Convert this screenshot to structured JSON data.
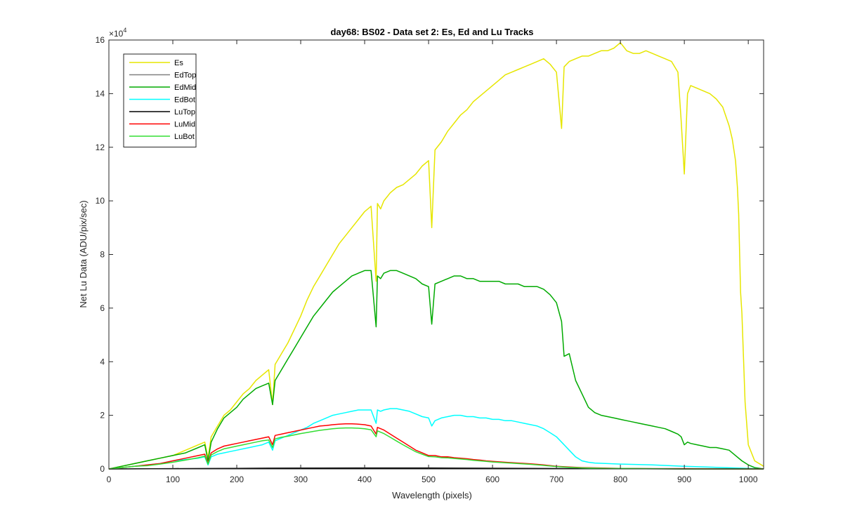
{
  "chart_data": {
    "type": "line",
    "title": "day68: BS02 - Data set 2: Es, Ed and Lu Tracks",
    "xlabel": "Wavelength (pixels)",
    "ylabel": "Net Lu Data (ADU/pix/sec)",
    "exponent_label": "×10",
    "exponent_power": "4",
    "xlim": [
      0,
      1024
    ],
    "ylim": [
      0,
      16
    ],
    "y_scale_factor": 10000,
    "xticks": [
      0,
      100,
      200,
      300,
      400,
      500,
      600,
      700,
      800,
      900,
      1000
    ],
    "xtick_labels": [
      "0",
      "100",
      "200",
      "300",
      "400",
      "500",
      "600",
      "700",
      "800",
      "900",
      "1000"
    ],
    "yticks": [
      0,
      2,
      4,
      6,
      8,
      10,
      12,
      14,
      16
    ],
    "ytick_labels": [
      "0",
      "2",
      "4",
      "6",
      "8",
      "10",
      "12",
      "14",
      "16"
    ],
    "grid": false,
    "legend_position": "top-left",
    "series": [
      {
        "name": "Es",
        "color": "#e6e600",
        "x": [
          0,
          20,
          40,
          60,
          80,
          100,
          120,
          140,
          150,
          155,
          160,
          170,
          180,
          190,
          200,
          210,
          220,
          230,
          240,
          250,
          256,
          260,
          270,
          280,
          290,
          300,
          310,
          320,
          330,
          340,
          350,
          360,
          370,
          380,
          390,
          400,
          410,
          418,
          420,
          425,
          430,
          440,
          450,
          460,
          470,
          480,
          490,
          500,
          505,
          510,
          520,
          530,
          540,
          550,
          560,
          570,
          580,
          590,
          600,
          610,
          620,
          630,
          640,
          650,
          660,
          670,
          680,
          690,
          700,
          708,
          712,
          720,
          730,
          740,
          750,
          760,
          770,
          780,
          790,
          800,
          810,
          820,
          830,
          840,
          850,
          860,
          870,
          880,
          890,
          895,
          900,
          905,
          910,
          920,
          930,
          940,
          950,
          960,
          970,
          975,
          980,
          983,
          985,
          988,
          990,
          995,
          1000,
          1010,
          1024
        ],
        "y": [
          0.0,
          0.1,
          0.2,
          0.3,
          0.4,
          0.5,
          0.7,
          0.9,
          1.0,
          0.4,
          1.2,
          1.6,
          2.0,
          2.2,
          2.5,
          2.8,
          3.0,
          3.3,
          3.5,
          3.7,
          2.4,
          3.9,
          4.3,
          4.7,
          5.2,
          5.7,
          6.3,
          6.8,
          7.2,
          7.6,
          8.0,
          8.4,
          8.7,
          9.0,
          9.3,
          9.6,
          9.8,
          7.0,
          9.9,
          9.7,
          10.0,
          10.3,
          10.5,
          10.6,
          10.8,
          11.0,
          11.3,
          11.5,
          9.0,
          11.9,
          12.2,
          12.6,
          12.9,
          13.2,
          13.4,
          13.7,
          13.9,
          14.1,
          14.3,
          14.5,
          14.7,
          14.8,
          14.9,
          15.0,
          15.1,
          15.2,
          15.3,
          15.1,
          14.8,
          12.7,
          15.0,
          15.2,
          15.3,
          15.4,
          15.4,
          15.5,
          15.6,
          15.6,
          15.7,
          15.9,
          15.6,
          15.5,
          15.5,
          15.6,
          15.5,
          15.4,
          15.3,
          15.2,
          14.8,
          13.0,
          11.0,
          14.0,
          14.3,
          14.2,
          14.1,
          14.0,
          13.8,
          13.5,
          12.8,
          12.3,
          11.5,
          10.5,
          9.5,
          6.6,
          5.8,
          2.5,
          0.9,
          0.3,
          0.1
        ]
      },
      {
        "name": "EdTop",
        "color": "#808080",
        "x": [
          0,
          100,
          200,
          300,
          400,
          500,
          600,
          700,
          800,
          900,
          1024
        ],
        "y": [
          0.0,
          0.01,
          0.02,
          0.03,
          0.04,
          0.04,
          0.03,
          0.02,
          0.01,
          0.01,
          0.0
        ]
      },
      {
        "name": "EdMid",
        "color": "#00aa00",
        "x": [
          0,
          20,
          40,
          60,
          80,
          100,
          120,
          140,
          150,
          155,
          160,
          170,
          180,
          190,
          200,
          210,
          220,
          230,
          240,
          250,
          256,
          260,
          270,
          280,
          290,
          300,
          310,
          320,
          330,
          340,
          350,
          360,
          370,
          380,
          390,
          400,
          410,
          418,
          420,
          425,
          430,
          440,
          450,
          460,
          470,
          480,
          490,
          500,
          505,
          510,
          520,
          530,
          540,
          550,
          560,
          570,
          580,
          590,
          600,
          610,
          620,
          630,
          640,
          650,
          660,
          670,
          680,
          690,
          700,
          708,
          712,
          720,
          730,
          740,
          750,
          760,
          770,
          780,
          790,
          800,
          810,
          820,
          830,
          840,
          850,
          860,
          870,
          880,
          890,
          895,
          900,
          905,
          910,
          920,
          930,
          940,
          950,
          960,
          970,
          980,
          990,
          1000,
          1010,
          1024
        ],
        "y": [
          0.0,
          0.1,
          0.2,
          0.3,
          0.4,
          0.5,
          0.6,
          0.8,
          0.9,
          0.3,
          1.0,
          1.5,
          1.9,
          2.1,
          2.3,
          2.6,
          2.8,
          3.0,
          3.1,
          3.2,
          2.4,
          3.3,
          3.7,
          4.1,
          4.5,
          4.9,
          5.3,
          5.7,
          6.0,
          6.3,
          6.6,
          6.8,
          7.0,
          7.2,
          7.3,
          7.4,
          7.4,
          5.3,
          7.2,
          7.1,
          7.3,
          7.4,
          7.4,
          7.3,
          7.2,
          7.1,
          6.9,
          6.8,
          5.4,
          6.9,
          7.0,
          7.1,
          7.2,
          7.2,
          7.1,
          7.1,
          7.0,
          7.0,
          7.0,
          7.0,
          6.9,
          6.9,
          6.9,
          6.8,
          6.8,
          6.8,
          6.7,
          6.5,
          6.2,
          5.5,
          4.2,
          4.3,
          3.3,
          2.8,
          2.3,
          2.1,
          2.0,
          1.95,
          1.9,
          1.85,
          1.8,
          1.75,
          1.7,
          1.65,
          1.6,
          1.55,
          1.5,
          1.4,
          1.3,
          1.2,
          0.9,
          1.0,
          0.95,
          0.9,
          0.85,
          0.8,
          0.8,
          0.75,
          0.7,
          0.5,
          0.3,
          0.15,
          0.05,
          0.0
        ]
      },
      {
        "name": "EdBot",
        "color": "#00ffff",
        "x": [
          0,
          20,
          40,
          60,
          80,
          100,
          120,
          140,
          150,
          155,
          160,
          170,
          180,
          190,
          200,
          210,
          220,
          230,
          240,
          250,
          256,
          260,
          270,
          280,
          290,
          300,
          310,
          320,
          330,
          340,
          350,
          360,
          370,
          380,
          390,
          400,
          410,
          418,
          420,
          425,
          430,
          440,
          450,
          460,
          470,
          480,
          490,
          500,
          505,
          510,
          520,
          530,
          540,
          550,
          560,
          570,
          580,
          590,
          600,
          610,
          620,
          630,
          640,
          650,
          660,
          670,
          680,
          690,
          700,
          710,
          720,
          730,
          740,
          750,
          760,
          780,
          800,
          850,
          900,
          950,
          1000,
          1024
        ],
        "y": [
          0.0,
          0.05,
          0.1,
          0.15,
          0.2,
          0.3,
          0.35,
          0.4,
          0.45,
          0.15,
          0.45,
          0.55,
          0.6,
          0.65,
          0.7,
          0.75,
          0.8,
          0.85,
          0.9,
          1.0,
          0.7,
          1.05,
          1.15,
          1.25,
          1.35,
          1.45,
          1.55,
          1.7,
          1.8,
          1.9,
          2.0,
          2.05,
          2.1,
          2.15,
          2.2,
          2.2,
          2.2,
          1.7,
          2.2,
          2.15,
          2.2,
          2.25,
          2.25,
          2.2,
          2.15,
          2.05,
          1.95,
          1.9,
          1.6,
          1.8,
          1.9,
          1.95,
          2.0,
          2.0,
          1.95,
          1.95,
          1.9,
          1.9,
          1.85,
          1.85,
          1.8,
          1.8,
          1.75,
          1.7,
          1.65,
          1.6,
          1.5,
          1.35,
          1.2,
          0.95,
          0.7,
          0.45,
          0.3,
          0.25,
          0.22,
          0.2,
          0.18,
          0.15,
          0.1,
          0.06,
          0.02,
          0.0
        ]
      },
      {
        "name": "LuTop",
        "color": "#000000",
        "x": [
          0,
          100,
          200,
          300,
          400,
          500,
          600,
          700,
          800,
          900,
          1024
        ],
        "y": [
          0.0,
          0.01,
          0.02,
          0.03,
          0.03,
          0.03,
          0.02,
          0.01,
          0.01,
          0.0,
          0.0
        ]
      },
      {
        "name": "LuMid",
        "color": "#ff0000",
        "x": [
          0,
          20,
          40,
          60,
          80,
          100,
          120,
          140,
          150,
          155,
          160,
          170,
          180,
          190,
          200,
          210,
          220,
          230,
          240,
          250,
          256,
          260,
          270,
          280,
          290,
          300,
          310,
          320,
          330,
          340,
          350,
          360,
          370,
          380,
          390,
          400,
          410,
          418,
          420,
          425,
          430,
          440,
          450,
          460,
          470,
          480,
          490,
          500,
          510,
          520,
          530,
          540,
          550,
          560,
          570,
          580,
          590,
          600,
          620,
          640,
          660,
          680,
          700,
          720,
          740,
          760,
          780,
          800,
          850,
          900,
          950,
          1000,
          1024
        ],
        "y": [
          0.0,
          0.05,
          0.1,
          0.15,
          0.2,
          0.3,
          0.4,
          0.5,
          0.55,
          0.2,
          0.6,
          0.75,
          0.85,
          0.9,
          0.95,
          1.0,
          1.05,
          1.1,
          1.15,
          1.2,
          0.9,
          1.25,
          1.3,
          1.35,
          1.4,
          1.45,
          1.5,
          1.55,
          1.6,
          1.62,
          1.65,
          1.67,
          1.68,
          1.68,
          1.67,
          1.65,
          1.6,
          1.3,
          1.55,
          1.5,
          1.45,
          1.3,
          1.15,
          1.0,
          0.85,
          0.7,
          0.6,
          0.5,
          0.5,
          0.45,
          0.45,
          0.42,
          0.4,
          0.38,
          0.35,
          0.33,
          0.3,
          0.28,
          0.25,
          0.22,
          0.19,
          0.15,
          0.1,
          0.07,
          0.05,
          0.04,
          0.03,
          0.02,
          0.01,
          0.01,
          0.0,
          0.0,
          0.0
        ]
      },
      {
        "name": "LuBot",
        "color": "#33dd33",
        "x": [
          0,
          20,
          40,
          60,
          80,
          100,
          120,
          140,
          150,
          155,
          160,
          170,
          180,
          190,
          200,
          210,
          220,
          230,
          240,
          250,
          256,
          260,
          270,
          280,
          290,
          300,
          310,
          320,
          330,
          340,
          350,
          360,
          370,
          380,
          390,
          400,
          410,
          418,
          420,
          425,
          430,
          440,
          450,
          460,
          470,
          480,
          490,
          500,
          510,
          520,
          530,
          540,
          550,
          560,
          570,
          580,
          590,
          600,
          620,
          640,
          660,
          680,
          700,
          720,
          740,
          760,
          780,
          800,
          850,
          900,
          950,
          1000,
          1024
        ],
        "y": [
          0.0,
          0.05,
          0.1,
          0.12,
          0.18,
          0.25,
          0.33,
          0.42,
          0.48,
          0.18,
          0.52,
          0.65,
          0.75,
          0.8,
          0.85,
          0.9,
          0.95,
          1.0,
          1.05,
          1.08,
          0.8,
          1.12,
          1.18,
          1.22,
          1.27,
          1.32,
          1.36,
          1.4,
          1.44,
          1.47,
          1.5,
          1.52,
          1.53,
          1.53,
          1.52,
          1.5,
          1.46,
          1.2,
          1.42,
          1.37,
          1.32,
          1.18,
          1.04,
          0.9,
          0.77,
          0.64,
          0.55,
          0.46,
          0.45,
          0.42,
          0.41,
          0.39,
          0.37,
          0.35,
          0.32,
          0.3,
          0.28,
          0.26,
          0.23,
          0.2,
          0.17,
          0.13,
          0.09,
          0.06,
          0.04,
          0.03,
          0.02,
          0.02,
          0.01,
          0.0,
          0.0,
          0.0,
          0.0
        ]
      }
    ]
  }
}
